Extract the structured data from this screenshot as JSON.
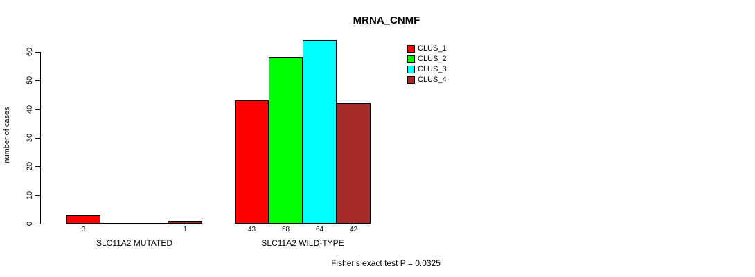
{
  "chart_data": {
    "type": "bar",
    "title": "MRNA_CNMF",
    "ylabel": "number of cases",
    "xlabel": "",
    "ylim": [
      0,
      60
    ],
    "y_ticks": [
      0,
      10,
      20,
      30,
      40,
      50,
      60
    ],
    "categories": [
      "SLC11A2 MUTATED",
      "SLC11A2 WILD-TYPE"
    ],
    "series": [
      {
        "name": "CLUS_1",
        "color": "#FF0000",
        "values": [
          3,
          43
        ]
      },
      {
        "name": "CLUS_2",
        "color": "#00FF00",
        "values": [
          0,
          58
        ]
      },
      {
        "name": "CLUS_3",
        "color": "#00FFFF",
        "values": [
          0,
          64
        ]
      },
      {
        "name": "CLUS_4",
        "color": "#A52A2A",
        "values": [
          1,
          42
        ]
      }
    ],
    "value_labels": "values shown under each non-zero bar",
    "annotation": "Fisher's exact test P = 0.0325",
    "legend_position": "top-right",
    "grid": false,
    "background": "#FFFFFF",
    "bar_border_color": "#000000"
  }
}
